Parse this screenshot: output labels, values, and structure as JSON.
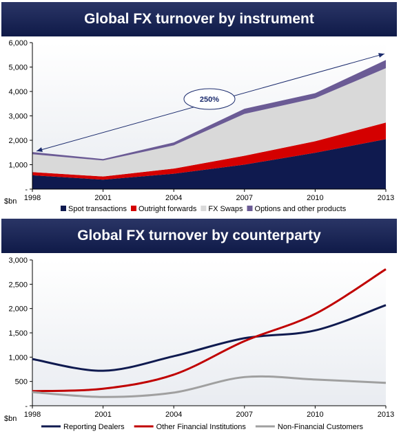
{
  "chart_data": [
    {
      "type": "area",
      "stacked": true,
      "title": "Global FX turnover by instrument",
      "ylabel": "$bn",
      "ylim": [
        0,
        6000
      ],
      "yticks": [
        "-",
        "1,000",
        "2,000",
        "3,000",
        "4,000",
        "5,000",
        "6,000"
      ],
      "categories": [
        "1998",
        "2001",
        "2004",
        "2007",
        "2010",
        "2013"
      ],
      "series": [
        {
          "name": "Spot transactions",
          "color": "#0f1a4f",
          "values": [
            568,
            386,
            631,
            1005,
            1488,
            2046
          ]
        },
        {
          "name": "Outright forwards",
          "color": "#d40000",
          "values": [
            128,
            130,
            209,
            362,
            475,
            679
          ]
        },
        {
          "name": "FX Swaps",
          "color": "#d9d9d9",
          "values": [
            734,
            656,
            954,
            1714,
            1759,
            2228
          ]
        },
        {
          "name": "Options and other products",
          "color": "#6b5b95",
          "values": [
            87,
            60,
            119,
            212,
            207,
            337
          ]
        }
      ],
      "annotation": {
        "label": "250%",
        "from": [
          "1998",
          1500
        ],
        "to": [
          "2013",
          5600
        ]
      },
      "legend": "bottom"
    },
    {
      "type": "line",
      "title": "Global FX turnover by counterparty",
      "ylabel": "$bn",
      "ylim": [
        0,
        3000
      ],
      "yticks": [
        "-",
        "500",
        "1,000",
        "1,500",
        "2,000",
        "2,500",
        "3,000"
      ],
      "categories": [
        "1998",
        "2001",
        "2004",
        "2007",
        "2010",
        "2013"
      ],
      "series": [
        {
          "name": "Reporting Dealers",
          "color": "#0f1a4f",
          "values": [
            960,
            720,
            1020,
            1390,
            1550,
            2070
          ]
        },
        {
          "name": "Other Financial Institutions",
          "color": "#c00000",
          "values": [
            300,
            350,
            640,
            1330,
            1890,
            2810
          ]
        },
        {
          "name": "Non-Financial Customers",
          "color": "#a0a0a0",
          "values": [
            280,
            180,
            270,
            590,
            540,
            470
          ]
        }
      ],
      "legend": "bottom"
    }
  ]
}
